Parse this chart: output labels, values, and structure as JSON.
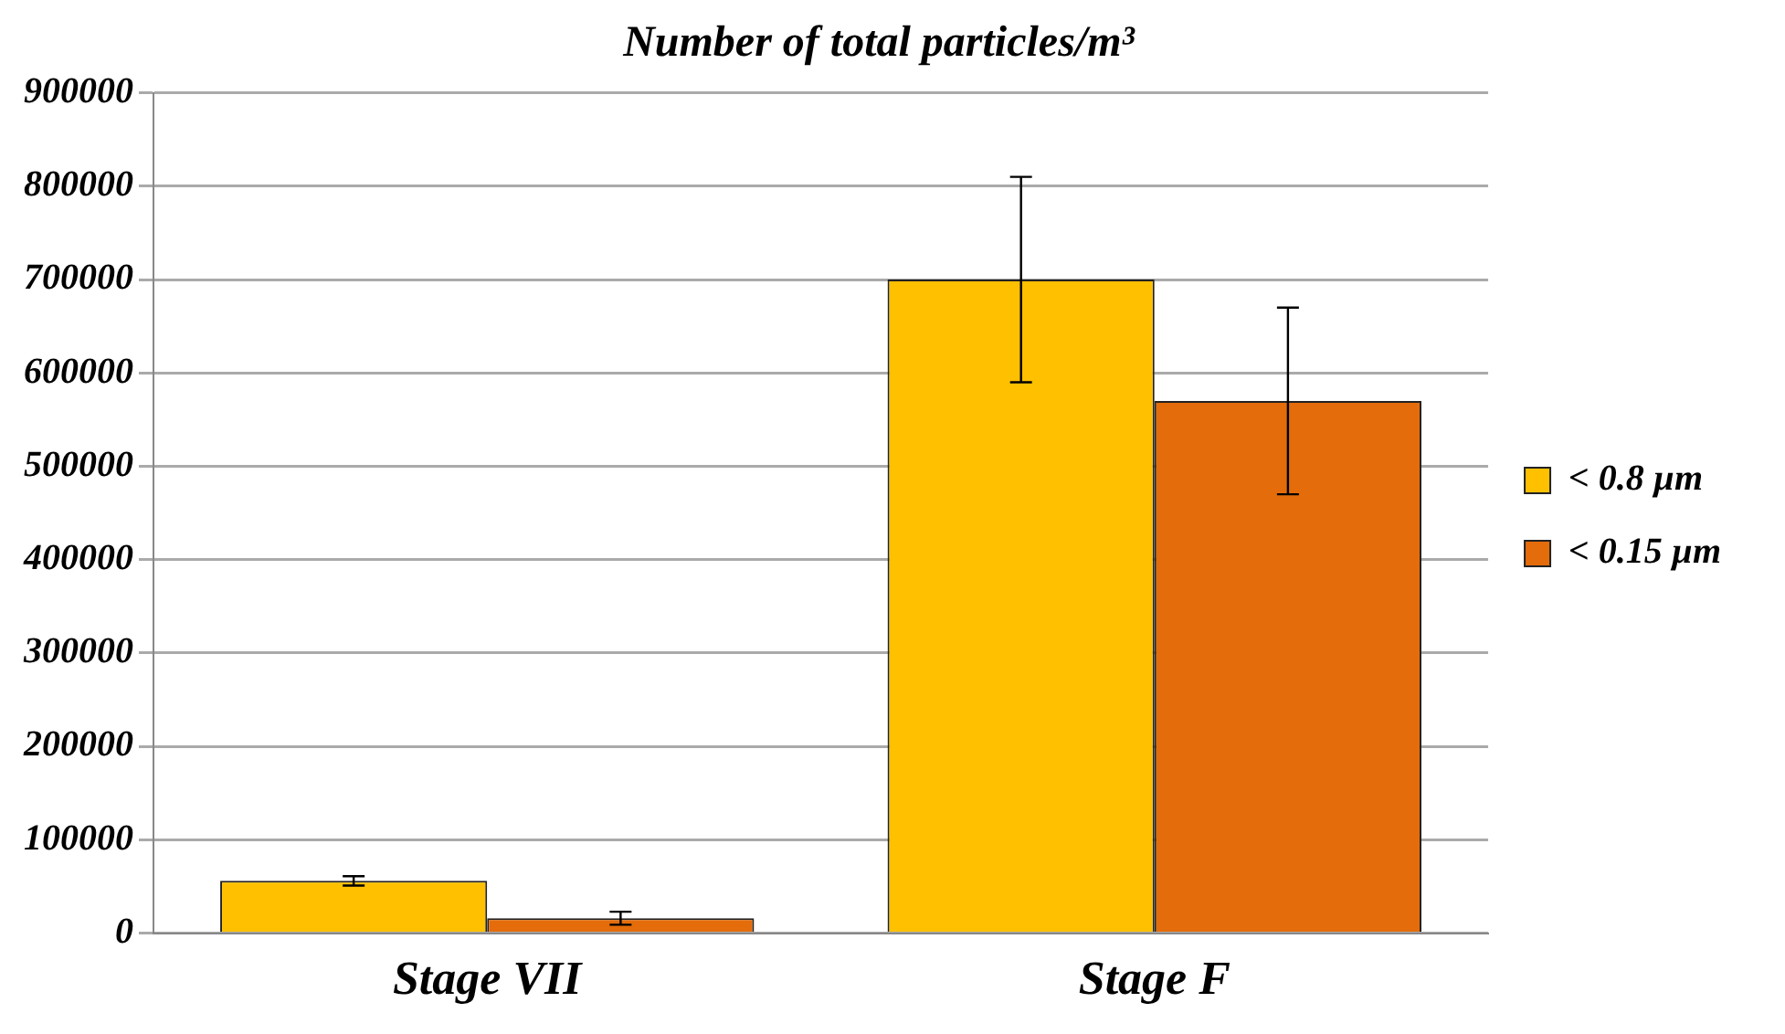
{
  "chart_data": {
    "type": "bar",
    "title": "Number of total particles/m³",
    "categories": [
      "Stage VII",
      "Stage F"
    ],
    "series": [
      {
        "name": "< 0.8 µm",
        "color": "#ffc000",
        "values": [
          56000,
          700000
        ],
        "errors": [
          5000,
          110000
        ]
      },
      {
        "name": "< 0.15 µm",
        "color": "#e46c0a",
        "values": [
          16000,
          570000
        ],
        "errors": [
          7000,
          100000
        ]
      }
    ],
    "ylim": [
      0,
      900000
    ],
    "yticks": [
      0,
      100000,
      200000,
      300000,
      400000,
      500000,
      600000,
      700000,
      800000,
      900000
    ],
    "grid": "y",
    "legend": "right"
  }
}
